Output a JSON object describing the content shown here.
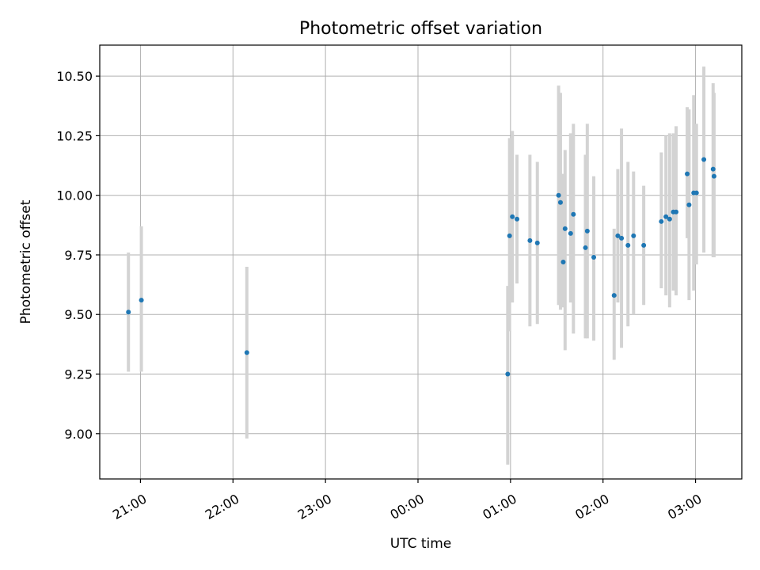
{
  "chart_data": {
    "type": "scatter",
    "title": "Photometric offset variation",
    "xlabel": "UTC time",
    "ylabel": "Photometric offset",
    "x_unit": "hour",
    "x_ticks": [
      {
        "t": 21,
        "label": "21:00"
      },
      {
        "t": 22,
        "label": "22:00"
      },
      {
        "t": 23,
        "label": "23:00"
      },
      {
        "t": 24,
        "label": "00:00"
      },
      {
        "t": 25,
        "label": "01:00"
      },
      {
        "t": 26,
        "label": "02:00"
      },
      {
        "t": 27,
        "label": "03:00"
      }
    ],
    "xlim": [
      20.56,
      27.5
    ],
    "ylim": [
      8.81,
      10.63
    ],
    "y_ticks": [
      {
        "v": 9.0,
        "label": "9.00"
      },
      {
        "v": 9.25,
        "label": "9.25"
      },
      {
        "v": 9.5,
        "label": "9.50"
      },
      {
        "v": 9.75,
        "label": "9.75"
      },
      {
        "v": 10.0,
        "label": "10.00"
      },
      {
        "v": 10.25,
        "label": "10.25"
      },
      {
        "v": 10.5,
        "label": "10.50"
      }
    ],
    "grid": true,
    "marker_color": "#1f77b4",
    "errorbar_color": "#d3d3d3",
    "points": [
      {
        "t": 20.87,
        "y": 9.51,
        "lo": 9.26,
        "hi": 9.76
      },
      {
        "t": 21.01,
        "y": 9.56,
        "lo": 9.26,
        "hi": 9.87
      },
      {
        "t": 22.15,
        "y": 9.34,
        "lo": 8.98,
        "hi": 9.7
      },
      {
        "t": 24.97,
        "y": 9.25,
        "lo": 8.87,
        "hi": 9.62
      },
      {
        "t": 24.99,
        "y": 9.83,
        "lo": 9.43,
        "hi": 10.24
      },
      {
        "t": 25.02,
        "y": 9.91,
        "lo": 9.55,
        "hi": 10.27
      },
      {
        "t": 25.07,
        "y": 9.9,
        "lo": 9.63,
        "hi": 10.17
      },
      {
        "t": 25.21,
        "y": 9.81,
        "lo": 9.45,
        "hi": 10.17
      },
      {
        "t": 25.29,
        "y": 9.8,
        "lo": 9.46,
        "hi": 10.14
      },
      {
        "t": 25.52,
        "y": 10.0,
        "lo": 9.54,
        "hi": 10.46
      },
      {
        "t": 25.54,
        "y": 9.97,
        "lo": 9.52,
        "hi": 10.43
      },
      {
        "t": 25.57,
        "y": 9.72,
        "lo": 9.53,
        "hi": 10.09
      },
      {
        "t": 25.59,
        "y": 9.86,
        "lo": 9.35,
        "hi": 10.19
      },
      {
        "t": 25.65,
        "y": 9.84,
        "lo": 9.55,
        "hi": 10.26
      },
      {
        "t": 25.68,
        "y": 9.92,
        "lo": 9.42,
        "hi": 10.3
      },
      {
        "t": 25.81,
        "y": 9.78,
        "lo": 9.4,
        "hi": 10.17
      },
      {
        "t": 25.83,
        "y": 9.85,
        "lo": 9.4,
        "hi": 10.3
      },
      {
        "t": 25.9,
        "y": 9.74,
        "lo": 9.39,
        "hi": 10.08
      },
      {
        "t": 26.12,
        "y": 9.58,
        "lo": 9.31,
        "hi": 9.86
      },
      {
        "t": 26.16,
        "y": 9.83,
        "lo": 9.55,
        "hi": 10.11
      },
      {
        "t": 26.2,
        "y": 9.82,
        "lo": 9.36,
        "hi": 10.28
      },
      {
        "t": 26.27,
        "y": 9.79,
        "lo": 9.45,
        "hi": 10.14
      },
      {
        "t": 26.33,
        "y": 9.83,
        "lo": 9.5,
        "hi": 10.1
      },
      {
        "t": 26.44,
        "y": 9.79,
        "lo": 9.54,
        "hi": 10.04
      },
      {
        "t": 26.63,
        "y": 9.89,
        "lo": 9.61,
        "hi": 10.18
      },
      {
        "t": 26.68,
        "y": 9.91,
        "lo": 9.58,
        "hi": 10.25
      },
      {
        "t": 26.72,
        "y": 9.9,
        "lo": 9.53,
        "hi": 10.26
      },
      {
        "t": 26.76,
        "y": 9.93,
        "lo": 9.6,
        "hi": 10.26
      },
      {
        "t": 26.79,
        "y": 9.93,
        "lo": 9.58,
        "hi": 10.29
      },
      {
        "t": 26.91,
        "y": 10.09,
        "lo": 9.82,
        "hi": 10.37
      },
      {
        "t": 26.93,
        "y": 9.96,
        "lo": 9.56,
        "hi": 10.36
      },
      {
        "t": 26.98,
        "y": 10.01,
        "lo": 9.6,
        "hi": 10.42
      },
      {
        "t": 27.01,
        "y": 10.01,
        "lo": 9.71,
        "hi": 10.3
      },
      {
        "t": 27.09,
        "y": 10.15,
        "lo": 9.76,
        "hi": 10.54
      },
      {
        "t": 27.19,
        "y": 10.11,
        "lo": 9.74,
        "hi": 10.47
      },
      {
        "t": 27.2,
        "y": 10.08,
        "lo": 9.74,
        "hi": 10.43
      }
    ]
  }
}
